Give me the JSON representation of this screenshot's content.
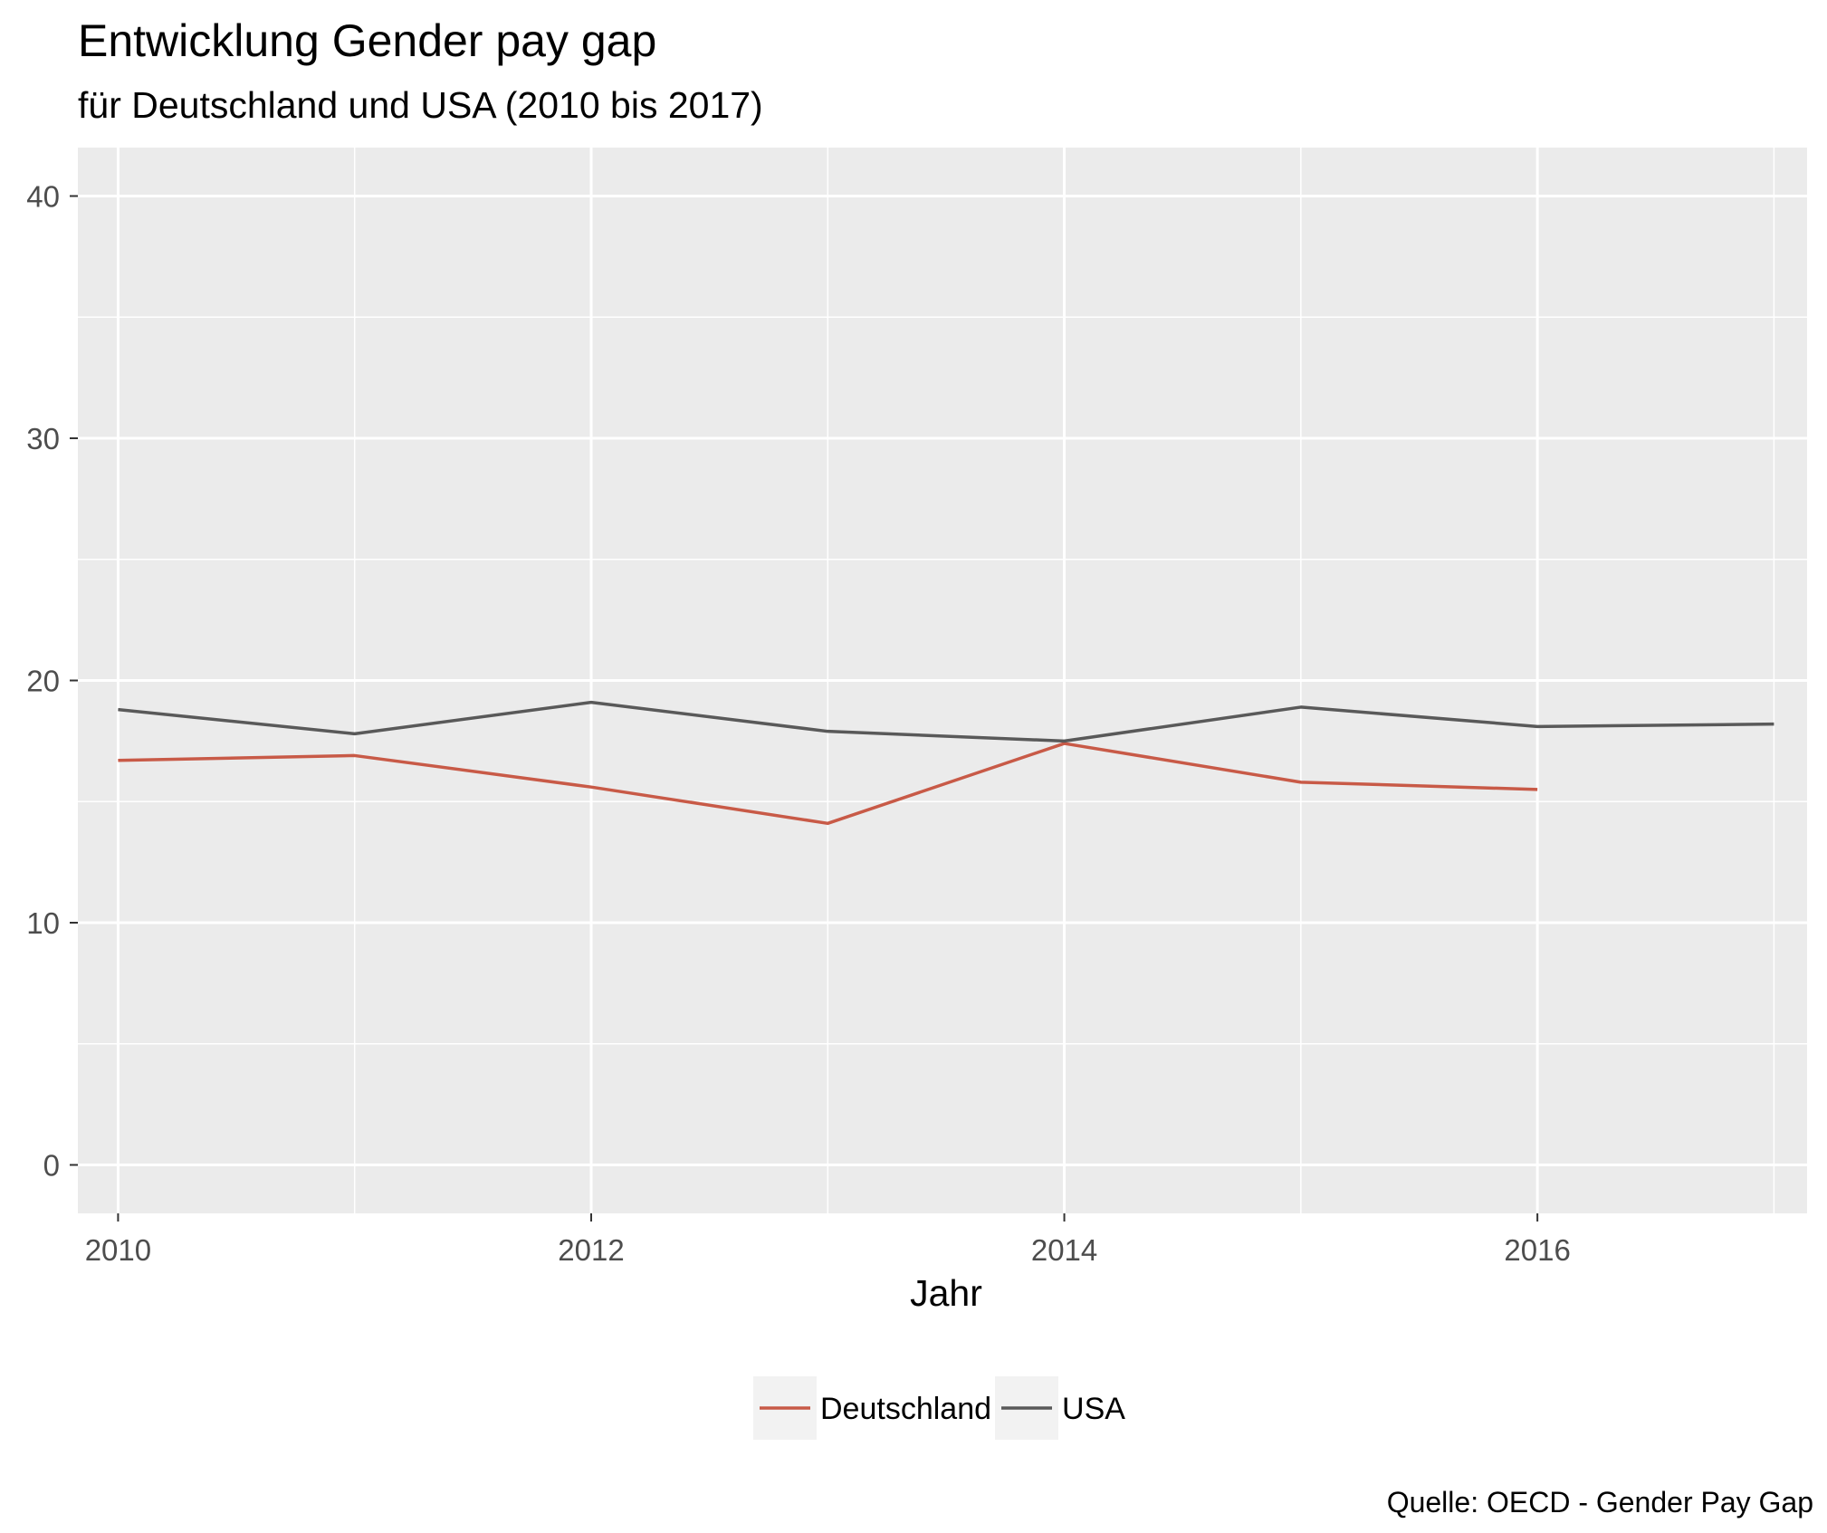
{
  "chart_data": {
    "type": "line",
    "title": "Entwicklung Gender pay gap",
    "subtitle": "für Deutschland und USA (2010 bis 2017)",
    "xlabel": "Jahr",
    "ylabel": "",
    "caption": "Quelle: OECD - Gender Pay Gap",
    "xlim": [
      2009.83,
      2017.14
    ],
    "ylim": [
      -2,
      42
    ],
    "x_ticks": [
      2010,
      2012,
      2014,
      2016
    ],
    "y_ticks": [
      0,
      10,
      20,
      30,
      40
    ],
    "grid": true,
    "legend_position": "bottom",
    "series": [
      {
        "name": "Deutschland",
        "color": "#c85a47",
        "x": [
          2010,
          2011,
          2012,
          2013,
          2014,
          2015,
          2016
        ],
        "values": [
          16.7,
          16.9,
          15.6,
          14.1,
          17.4,
          15.8,
          15.5
        ]
      },
      {
        "name": "USA",
        "color": "#595959",
        "x": [
          2010,
          2011,
          2012,
          2013,
          2014,
          2015,
          2016,
          2017
        ],
        "values": [
          18.8,
          17.8,
          19.1,
          17.9,
          17.5,
          18.9,
          18.1,
          18.2
        ]
      }
    ]
  }
}
